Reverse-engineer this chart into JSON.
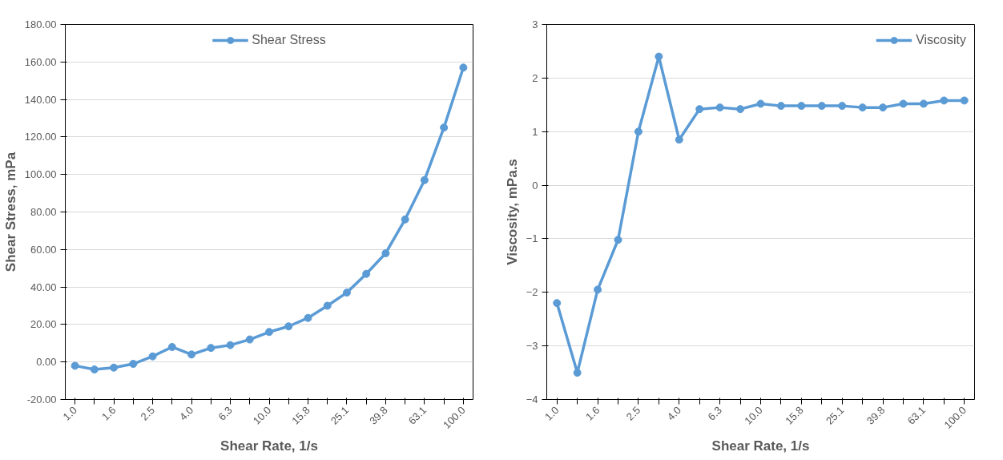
{
  "chart_data": [
    {
      "type": "line",
      "xlabel": "Shear Rate, 1/s",
      "ylabel": "Shear Stress, mPa",
      "categories": [
        "1.0",
        null,
        "1.6",
        null,
        "2.5",
        null,
        "4.0",
        null,
        "6.3",
        null,
        "10.0",
        null,
        "15.8",
        null,
        "25.1",
        null,
        "39.8",
        null,
        "63.1",
        null,
        "100.0"
      ],
      "series": [
        {
          "name": "Shear Stress",
          "color": "#5b9bd5",
          "values": [
            -2,
            -4,
            -3,
            -1,
            3,
            8,
            4,
            7.5,
            9,
            12,
            16,
            19,
            23.5,
            30,
            37,
            47,
            58,
            76,
            97,
            125,
            157
          ]
        }
      ],
      "ylim": [
        -20,
        180
      ],
      "yticks": [
        {
          "value": -20,
          "label": "-20.00"
        },
        {
          "value": 0,
          "label": "0.00"
        },
        {
          "value": 20,
          "label": "20.00"
        },
        {
          "value": 40,
          "label": "40.00"
        },
        {
          "value": 60,
          "label": "60.00"
        },
        {
          "value": 80,
          "label": "80.00"
        },
        {
          "value": 100,
          "label": "100.00"
        },
        {
          "value": 120,
          "label": "120.00"
        },
        {
          "value": 140,
          "label": "140.00"
        },
        {
          "value": 160,
          "label": "160.00"
        },
        {
          "value": 180,
          "label": "180.00"
        }
      ],
      "grid": "y",
      "legend": "top",
      "marker": "circle",
      "line_style": "solid"
    },
    {
      "type": "line",
      "xlabel": "Shear Rate, 1/s",
      "ylabel": "Viscosity, mPa.s",
      "categories": [
        "1.0",
        null,
        "1.6",
        null,
        "2.5",
        null,
        "4.0",
        null,
        "6.3",
        null,
        "10.0",
        null,
        "15.8",
        null,
        "25.1",
        null,
        "39.8",
        null,
        "63.1",
        null,
        "100.0"
      ],
      "series": [
        {
          "name": "Viscosity",
          "color": "#5b9bd5",
          "values": [
            -2.2,
            -3.5,
            -1.95,
            -1.02,
            1.0,
            2.4,
            0.85,
            1.42,
            1.45,
            1.42,
            1.52,
            1.48,
            1.48,
            1.48,
            1.48,
            1.45,
            1.45,
            1.52,
            1.52,
            1.58,
            1.58
          ]
        }
      ],
      "ylim": [
        -4,
        3
      ],
      "yticks": [
        -4,
        -3,
        -2,
        -1,
        0,
        1,
        2,
        3
      ],
      "grid": "y",
      "legend": "top right",
      "marker": "circle",
      "line_style": "solid"
    }
  ]
}
